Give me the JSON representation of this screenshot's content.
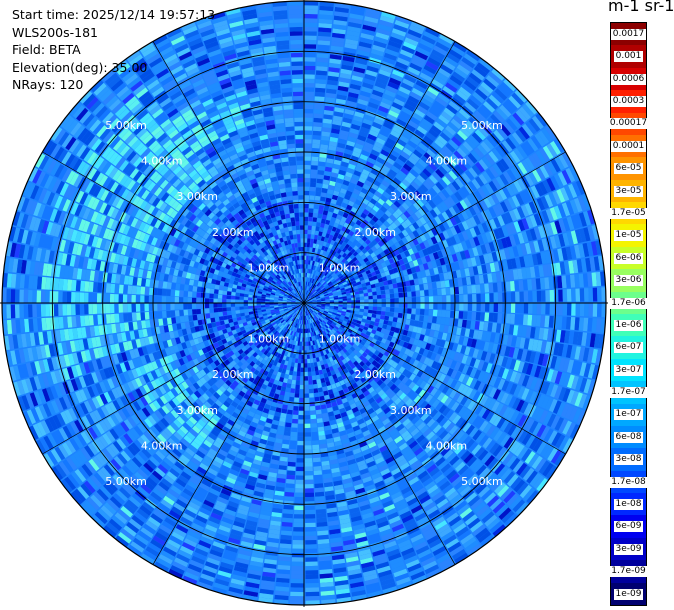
{
  "info": {
    "start_time": "Start time: 2025/12/14 19:57:13",
    "instrument": "WLS200s-181",
    "field": "Field: BETA",
    "elevation": "Elevation(deg): 35.00",
    "nrays": "NRays: 120"
  },
  "colorbar": {
    "title": "m-1 sr-1",
    "labels": [
      "0.0017",
      "0.001",
      "0.0006",
      "0.0003",
      "0.00017",
      "0.0001",
      "6e-05",
      "3e-05",
      "1.7e-05",
      "1e-05",
      "6e-06",
      "3e-06",
      "1.7e-06",
      "1e-06",
      "6e-07",
      "3e-07",
      "1.7e-07",
      "1e-07",
      "6e-08",
      "3e-08",
      "1.7e-08",
      "1e-08",
      "6e-09",
      "3e-09",
      "1.7e-09",
      "1e-09"
    ],
    "colors": [
      "#8b0000",
      "#b00000",
      "#d80000",
      "#ff2000",
      "#ff4800",
      "#ff7000",
      "#ff9400",
      "#ffb400",
      "#ffd800",
      "#f4f400",
      "#c8ff28",
      "#98ff60",
      "#6cff8c",
      "#40ffb8",
      "#20f4e0",
      "#00e4ff",
      "#00c4ff",
      "#00a8ff",
      "#008cff",
      "#006cff",
      "#0048ff",
      "#0028ff",
      "#0000f0",
      "#0000c8",
      "#00009c",
      "#000070"
    ]
  },
  "chart_data": {
    "type": "heatmap",
    "projection": "polar PPI",
    "field": "BETA",
    "elevation_deg": 35.0,
    "nrays": 120,
    "range_rings_km": [
      1.0,
      2.0,
      3.0,
      4.0,
      5.0
    ],
    "ring_labels": [
      "1.00km",
      "2.00km",
      "3.00km",
      "4.00km",
      "5.00km"
    ],
    "max_range_km": 6.0,
    "value_range": [
      1e-09,
      0.0017
    ],
    "dominant_values": [
      "3e-08",
      "6e-08",
      "1e-07",
      "1.7e-07"
    ],
    "grid": true
  }
}
